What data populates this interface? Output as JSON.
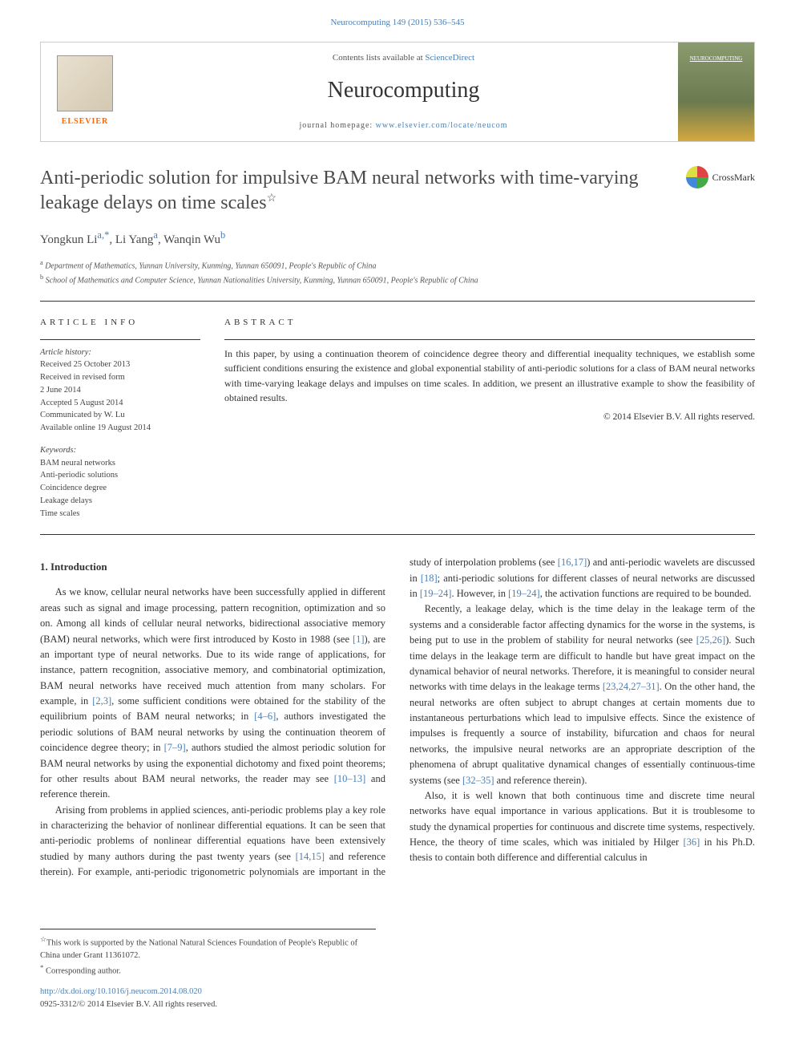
{
  "citation": "Neurocomputing 149 (2015) 536–545",
  "header": {
    "contents_line_prefix": "Contents lists available at ",
    "contents_link": "ScienceDirect",
    "journal_title": "Neurocomputing",
    "homepage_prefix": "journal homepage: ",
    "homepage_link": "www.elsevier.com/locate/neucom",
    "elsevier_label": "ELSEVIER",
    "cover_label": "NEUROCOMPUTING"
  },
  "article": {
    "title": "Anti-periodic solution for impulsive BAM neural networks with time-varying leakage delays on time scales",
    "star": "☆",
    "crossmark_label": "CrossMark",
    "authors_html": "Yongkun Li",
    "author1": "Yongkun Li",
    "author1_sup": "a,",
    "author1_star": "*",
    "author2": ", Li Yang",
    "author2_sup": "a",
    "author3": ", Wanqin Wu",
    "author3_sup": "b",
    "affil_a": "Department of Mathematics, Yunnan University, Kunming, Yunnan 650091, People's Republic of China",
    "affil_b": "School of Mathematics and Computer Science, Yunnan Nationalities University, Kunming, Yunnan 650091, People's Republic of China"
  },
  "info": {
    "heading": "ARTICLE INFO",
    "history_label": "Article history:",
    "received": "Received 25 October 2013",
    "revised1": "Received in revised form",
    "revised2": "2 June 2014",
    "accepted": "Accepted 5 August 2014",
    "communicated": "Communicated by W. Lu",
    "online": "Available online 19 August 2014",
    "keywords_label": "Keywords:",
    "kw1": "BAM neural networks",
    "kw2": "Anti-periodic solutions",
    "kw3": "Coincidence degree",
    "kw4": "Leakage delays",
    "kw5": "Time scales"
  },
  "abstract": {
    "heading": "ABSTRACT",
    "text": "In this paper, by using a continuation theorem of coincidence degree theory and differential inequality techniques, we establish some sufficient conditions ensuring the existence and global exponential stability of anti-periodic solutions for a class of BAM neural networks with time-varying leakage delays and impulses on time scales. In addition, we present an illustrative example to show the feasibility of obtained results.",
    "copyright": "© 2014 Elsevier B.V. All rights reserved."
  },
  "body": {
    "sec1_heading": "1. Introduction",
    "p1a": "As we know, cellular neural networks have been successfully applied in different areas such as signal and image processing, pattern recognition, optimization and so on. Among all kinds of cellular neural networks, bidirectional associative memory (BAM) neural networks, which were first introduced by Kosto in 1988 (see ",
    "p1_ref1": "[1]",
    "p1b": "), are an important type of neural networks. Due to its wide range of applications, for instance, pattern recognition, associative memory, and combinatorial optimization, BAM neural networks have received much attention from many scholars. For example, in ",
    "p1_ref2": "[2,3]",
    "p1c": ", some sufficient conditions were obtained for the stability of the equilibrium points of BAM neural networks; in ",
    "p1_ref3": "[4–6]",
    "p1d": ", authors investigated the periodic solutions of BAM neural networks by using the continuation theorem of coincidence degree theory; in ",
    "p1_ref4": "[7–9]",
    "p1e": ", authors studied the almost periodic solution for BAM neural networks by using the exponential dichotomy and fixed point theorems; for other results about BAM neural networks, the reader may see ",
    "p1_ref5": "[10–13]",
    "p1f": " and reference therein.",
    "p2a": "Arising from problems in applied sciences, anti-periodic problems play a key role in characterizing the behavior of nonlinear differential equations. It can be seen that anti-periodic problems of nonlinear differential equations have been extensively studied by many authors during the past twenty years (see ",
    "p2_ref1": "[14,15]",
    "p2b": " and reference therein). For example, anti-periodic trigonometric polynomials are important in the study of interpolation problems (see ",
    "p2_ref2": "[16,17]",
    "p2c": ") and anti-periodic wavelets are discussed in ",
    "p2_ref3": "[18]",
    "p2d": "; anti-periodic solutions for different classes of neural networks are discussed in ",
    "p2_ref4": "[19–24]",
    "p2e": ". However, in ",
    "p2_ref5": "[19–24]",
    "p2f": ", the activation functions are required to be bounded.",
    "p3a": "Recently, a leakage delay, which is the time delay in the leakage term of the systems and a considerable factor affecting dynamics for the worse in the systems, is being put to use in the problem of stability for neural networks (see ",
    "p3_ref1": "[25,26]",
    "p3b": "). Such time delays in the leakage term are difficult to handle but have great impact on the dynamical behavior of neural networks. Therefore, it is meaningful to consider neural networks with time delays in the leakage terms ",
    "p3_ref2": "[23,24,27–31]",
    "p3c": ". On the other hand, the neural networks are often subject to abrupt changes at certain moments due to instantaneous perturbations which lead to impulsive effects. Since the existence of impulses is frequently a source of instability, bifurcation and chaos for neural networks, the impulsive neural networks are an appropriate description of the phenomena of abrupt qualitative dynamical changes of essentially continuous-time systems (see ",
    "p3_ref3": "[32–35]",
    "p3d": " and reference therein).",
    "p4a": "Also, it is well known that both continuous time and discrete time neural networks have equal importance in various applications. But it is troublesome to study the dynamical properties for continuous and discrete time systems, respectively. Hence, the theory of time scales, which was initialed by Hilger ",
    "p4_ref1": "[36]",
    "p4b": " in his Ph.D. thesis to contain both difference and differential calculus in"
  },
  "footnotes": {
    "funding_star": "☆",
    "funding": "This work is supported by the National Natural Sciences Foundation of People's Republic of China under Grant 11361072.",
    "corr_star": "*",
    "corr": "Corresponding author.",
    "doi_link": "http://dx.doi.org/10.1016/j.neucom.2014.08.020",
    "issn_copyright": "0925-3312/© 2014 Elsevier B.V. All rights reserved."
  },
  "colors": {
    "link": "#4a7fb5",
    "text": "#333333",
    "orange": "#ff6600"
  }
}
